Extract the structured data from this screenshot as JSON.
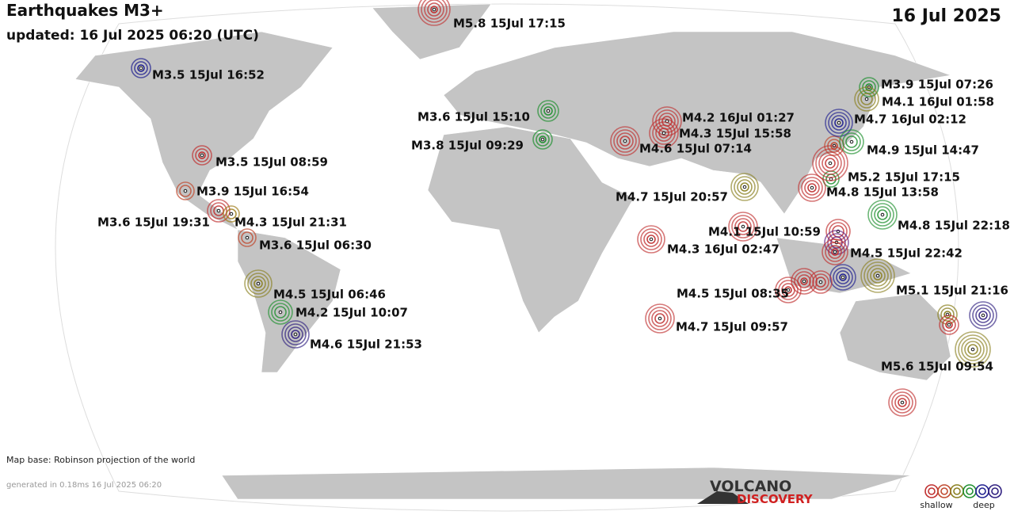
{
  "header": {
    "title": "Earthquakes M3+",
    "updated": "updated: 16 Jul 2025 06:20 (UTC)",
    "date": "16 Jul 2025"
  },
  "quakes": [
    {
      "label": "M5.8 15Jul 17:15",
      "color": "#c03030"
    },
    {
      "label": "M3.5 15Jul 16:52",
      "color": "#202090"
    },
    {
      "label": "M3.5 15Jul 08:59",
      "color": "#c03030"
    },
    {
      "label": "M3.9 15Jul 16:54",
      "color": "#c04a30"
    },
    {
      "label": "M3.6 15Jul 19:31",
      "color": "#c03030"
    },
    {
      "label": "M4.3 15Jul 21:31",
      "color": "#a08020"
    },
    {
      "label": "M3.6 15Jul 06:30",
      "color": "#c04a30"
    },
    {
      "label": "M4.5 15Jul 06:46",
      "color": "#8a8020"
    },
    {
      "label": "M4.2 15Jul 10:07",
      "color": "#209030"
    },
    {
      "label": "M4.6 15Jul 21:53",
      "color": "#302080"
    },
    {
      "label": "M3.6 15Jul 15:10",
      "color": "#209030"
    },
    {
      "label": "M3.8 15Jul 09:29",
      "color": "#209030"
    },
    {
      "label": "M4.2 16Jul 01:27",
      "color": "#c03030"
    },
    {
      "label": "M4.3 15Jul 15:58",
      "color": "#c03030"
    },
    {
      "label": "M4.6 15Jul 07:14",
      "color": "#c03030"
    },
    {
      "label": "M4.7 15Jul 20:57",
      "color": "#8a8020"
    },
    {
      "label": "M4.1 15Jul 10:59",
      "color": "#c03030"
    },
    {
      "label": "M4.3 16Jul 02:47",
      "color": "#c03030"
    },
    {
      "label": "M4.5 15Jul 08:35",
      "color": "#c03030"
    },
    {
      "label": "M4.7 15Jul 09:57",
      "color": "#c03030"
    },
    {
      "label": "M3.9 15Jul 07:26",
      "color": "#209030"
    },
    {
      "label": "M4.1 16Jul 01:58",
      "color": "#8a8020"
    },
    {
      "label": "M4.7 16Jul 02:12",
      "color": "#202090"
    },
    {
      "label": "M4.9 15Jul 14:47",
      "color": "#209030"
    },
    {
      "label": "M5.2 15Jul 17:15",
      "color": "#c03030"
    },
    {
      "label": "M4.8 15Jul 13:58",
      "color": "#c03030"
    },
    {
      "label": "M4.8 15Jul 22:18",
      "color": "#209030"
    },
    {
      "label": "M4.5 15Jul 22:42",
      "color": "#c03030"
    },
    {
      "label": "M5.1 15Jul 21:16",
      "color": "#8a8020"
    },
    {
      "label": "M5.6 15Jul 09:54",
      "color": "#8a8020"
    }
  ],
  "footer": {
    "map_base": "Map base: Robinson projection of the world",
    "generated": "generated in 0.18ms 16 Jul 2025 06:20"
  },
  "logo": {
    "line1": "VOLCANO",
    "line2": "DISCOVERY"
  },
  "legend": {
    "shallow": "shallow",
    "deep": "deep"
  }
}
